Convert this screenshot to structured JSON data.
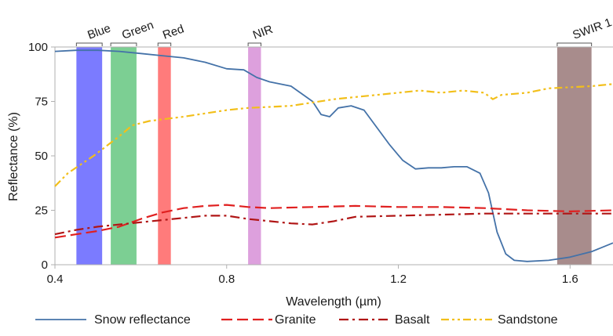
{
  "chart_data": {
    "type": "line",
    "xlabel": "Wavelength (µm)",
    "ylabel": "Reflectance (%)",
    "xlim": [
      0.4,
      1.7
    ],
    "ylim": [
      0,
      100
    ],
    "xticks": [
      0.4,
      0.8,
      1.2,
      1.6
    ],
    "xtick_labels": [
      "0.4",
      "0.8",
      "1.2",
      "1.6"
    ],
    "yticks": [
      0,
      25,
      50,
      75,
      100
    ],
    "ytick_labels": [
      "0",
      "25",
      "50",
      "75",
      "100"
    ],
    "grid": false,
    "legend_position": "bottom",
    "bands": [
      {
        "name": "Blue",
        "range": [
          0.45,
          0.51
        ],
        "color": "#7b7bff"
      },
      {
        "name": "Green",
        "range": [
          0.53,
          0.59
        ],
        "color": "#7ccf93"
      },
      {
        "name": "Red",
        "range": [
          0.64,
          0.67
        ],
        "color": "#ff7b7b"
      },
      {
        "name": "NIR",
        "range": [
          0.85,
          0.88
        ],
        "color": "#dda0dd"
      },
      {
        "name": "SWIR 1",
        "range": [
          1.57,
          1.65
        ],
        "color": "#a88c8c"
      }
    ],
    "series": [
      {
        "name": "Snow reflectance",
        "color": "#4472a8",
        "style": "solid",
        "x": [
          0.4,
          0.45,
          0.5,
          0.55,
          0.6,
          0.65,
          0.7,
          0.75,
          0.8,
          0.84,
          0.87,
          0.9,
          0.95,
          1.0,
          1.02,
          1.04,
          1.06,
          1.09,
          1.12,
          1.15,
          1.18,
          1.21,
          1.24,
          1.27,
          1.3,
          1.33,
          1.36,
          1.39,
          1.41,
          1.43,
          1.45,
          1.47,
          1.5,
          1.55,
          1.6,
          1.65,
          1.7
        ],
        "y": [
          98,
          98.5,
          98.5,
          98,
          97,
          96,
          95,
          93,
          90,
          89.5,
          86,
          84,
          82,
          75,
          69,
          68,
          72,
          73,
          71,
          63,
          55,
          48,
          44,
          44.5,
          44.5,
          45,
          45,
          42,
          33,
          15,
          5,
          2,
          1.5,
          2,
          3.5,
          6,
          10
        ]
      },
      {
        "name": "Granite",
        "color": "#e02020",
        "style": "dashed",
        "x": [
          0.4,
          0.45,
          0.5,
          0.55,
          0.6,
          0.65,
          0.7,
          0.75,
          0.8,
          0.85,
          0.9,
          1.0,
          1.1,
          1.2,
          1.3,
          1.4,
          1.5,
          1.6,
          1.7
        ],
        "y": [
          12.5,
          14,
          15.5,
          17.5,
          21,
          24,
          26,
          27,
          27.5,
          26.5,
          26,
          26.5,
          27,
          26.5,
          26.5,
          26,
          25,
          24.5,
          25
        ]
      },
      {
        "name": "Basalt",
        "color": "#b01515",
        "style": "dashdot",
        "x": [
          0.4,
          0.45,
          0.5,
          0.55,
          0.6,
          0.65,
          0.7,
          0.75,
          0.8,
          0.85,
          0.9,
          0.95,
          1.0,
          1.05,
          1.1,
          1.2,
          1.3,
          1.4,
          1.5,
          1.6,
          1.7
        ],
        "y": [
          14,
          16,
          17.5,
          18.5,
          19.5,
          20.5,
          21.5,
          22.5,
          22.5,
          21,
          20,
          19,
          18.5,
          20,
          22,
          22.5,
          23,
          23.5,
          23.5,
          23.5,
          23.5
        ]
      },
      {
        "name": "Sandstone",
        "color": "#f2bf1a",
        "style": "dashdotdot",
        "x": [
          0.4,
          0.43,
          0.46,
          0.49,
          0.51,
          0.53,
          0.55,
          0.58,
          0.62,
          0.66,
          0.7,
          0.75,
          0.8,
          0.85,
          0.9,
          0.95,
          1.0,
          1.05,
          1.1,
          1.15,
          1.2,
          1.25,
          1.3,
          1.35,
          1.4,
          1.42,
          1.44,
          1.5,
          1.55,
          1.6,
          1.65,
          1.7
        ],
        "y": [
          36,
          42,
          46,
          50,
          53,
          56,
          59,
          64,
          66,
          67,
          68,
          69.5,
          71,
          72,
          72.5,
          73,
          74.5,
          76,
          77,
          78,
          79,
          80,
          79,
          80,
          79,
          76,
          78,
          79,
          81,
          81.5,
          82,
          83
        ]
      }
    ]
  }
}
